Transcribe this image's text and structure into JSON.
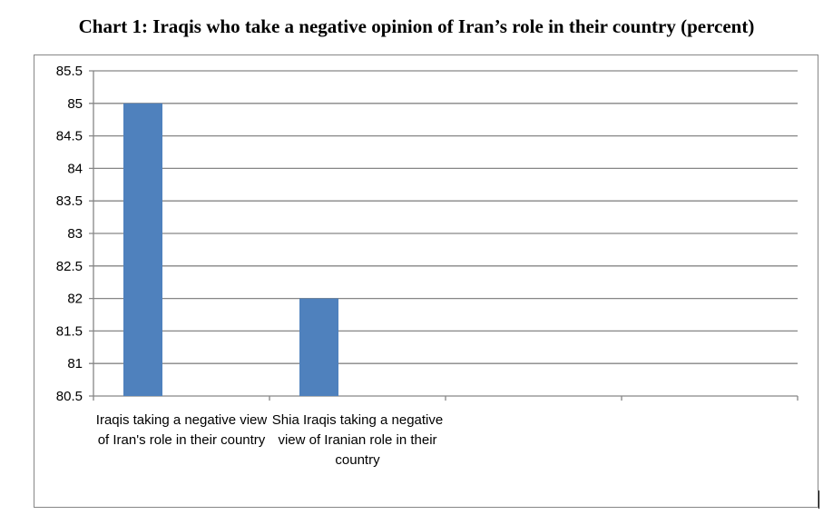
{
  "chart_data": {
    "type": "bar",
    "title": "Chart 1: Iraqis who take a negative opinion of Iran’s role in their country (percent)",
    "categories": [
      "Iraqis taking a negative view of Iran's role in their country",
      "Shia Iraqis taking a negative view of Iranian role in their country",
      "",
      ""
    ],
    "values": [
      85,
      82,
      null,
      null
    ],
    "ylim": [
      80.5,
      85.5
    ],
    "yticks": [
      "80.5",
      "81",
      "81.5",
      "82",
      "82.5",
      "83",
      "83.5",
      "84",
      "84.5",
      "85",
      "85.5"
    ],
    "xlabel": "",
    "ylabel": "",
    "grid": true,
    "bar_color": "#4f81bd"
  }
}
